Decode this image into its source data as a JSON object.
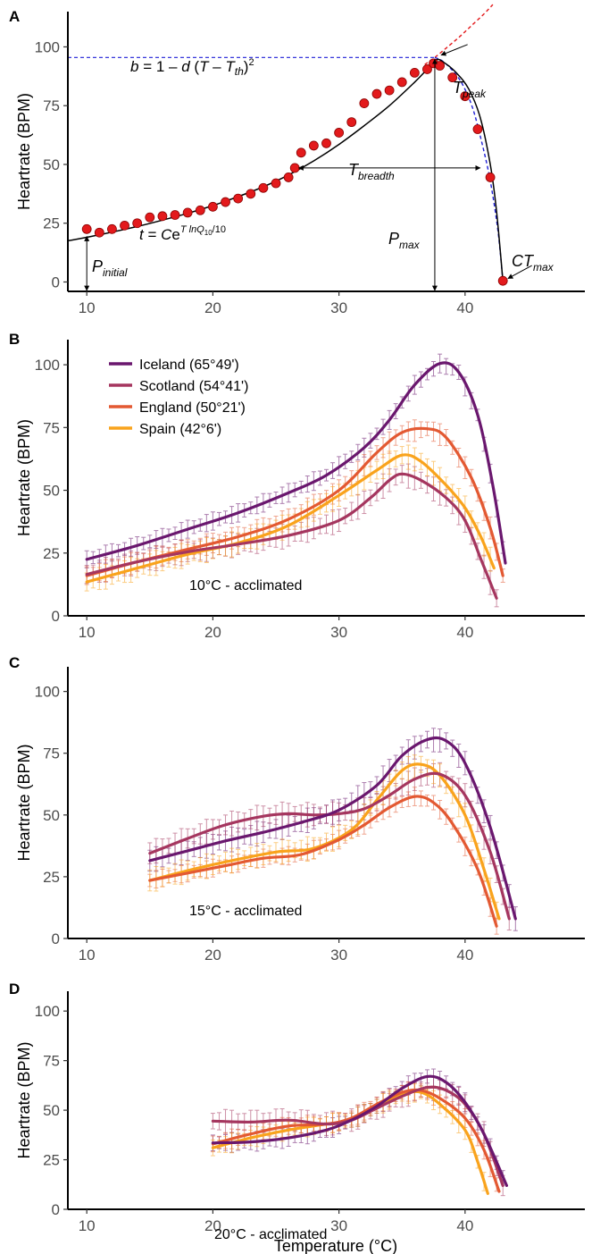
{
  "colors": {
    "Iceland": "#6a176e",
    "Scotland": "#a5365f",
    "England": "#e35932",
    "Spain": "#f9a31c",
    "model_fit": "#000000",
    "observed_points": "#e31a1c",
    "arrhenius_curve": "#e31a1c",
    "denaturation_curve": "#1f1fd6"
  },
  "x_axis_title": "Temperature (°C)",
  "chart_data": [
    {
      "type": "scatter",
      "panel": "A",
      "ylabel": "Heartrate (BPM)",
      "xlim": [
        8.5,
        49.5
      ],
      "ylim": [
        -4,
        115
      ],
      "x_ticks": [
        "10",
        "20",
        "30",
        "40"
      ],
      "y_ticks": [
        "0",
        "25",
        "50",
        "75",
        "100"
      ],
      "points": [
        [
          10,
          22.5
        ],
        [
          11,
          21
        ],
        [
          12,
          22.5
        ],
        [
          13,
          24
        ],
        [
          14,
          25
        ],
        [
          15,
          27.5
        ],
        [
          16,
          28
        ],
        [
          17,
          28.5
        ],
        [
          18,
          29.5
        ],
        [
          19,
          30.5
        ],
        [
          20,
          32
        ],
        [
          21,
          34
        ],
        [
          22,
          35.5
        ],
        [
          23,
          37.5
        ],
        [
          24,
          40
        ],
        [
          25,
          42
        ],
        [
          26,
          44.5
        ],
        [
          26.5,
          48.5
        ],
        [
          27,
          55
        ],
        [
          28,
          58
        ],
        [
          29,
          59
        ],
        [
          30,
          63.5
        ],
        [
          31,
          68
        ],
        [
          32,
          76
        ],
        [
          33,
          80
        ],
        [
          34,
          81.5
        ],
        [
          35,
          85
        ],
        [
          36,
          89
        ],
        [
          37,
          90.5
        ],
        [
          37.5,
          93
        ],
        [
          38,
          92
        ],
        [
          39,
          87
        ],
        [
          40,
          79
        ],
        [
          41,
          65
        ],
        [
          42,
          44.5
        ],
        [
          43,
          0.5
        ]
      ],
      "fit_curve": [
        [
          8.5,
          17.5
        ],
        [
          10,
          19
        ],
        [
          12,
          21.2
        ],
        [
          14,
          23.6
        ],
        [
          16,
          26.3
        ],
        [
          18,
          29.2
        ],
        [
          20,
          32.5
        ],
        [
          22,
          36.3
        ],
        [
          24,
          40.5
        ],
        [
          26,
          45.5
        ],
        [
          28,
          51.5
        ],
        [
          30,
          58.5
        ],
        [
          32,
          66.5
        ],
        [
          34,
          75
        ],
        [
          36,
          85
        ],
        [
          37,
          90.5
        ],
        [
          37.7,
          94.5
        ],
        [
          38.3,
          93.5
        ],
        [
          39.3,
          89
        ],
        [
          40.3,
          82
        ],
        [
          41.2,
          70
        ],
        [
          42,
          50
        ],
        [
          42.5,
          30
        ],
        [
          43,
          0.5
        ]
      ],
      "dashed_exponential": [
        [
          36.8,
          92.5
        ],
        [
          37.6,
          95.5
        ],
        [
          38.5,
          99.5
        ],
        [
          39.5,
          104
        ],
        [
          40.5,
          109
        ],
        [
          41.5,
          114
        ],
        [
          42.2,
          118
        ]
      ],
      "dashed_quadratic": [
        [
          37.6,
          95.5
        ],
        [
          38.2,
          94
        ],
        [
          39,
          90
        ],
        [
          39.8,
          84
        ],
        [
          40.6,
          74
        ],
        [
          41.3,
          60
        ],
        [
          42,
          43
        ],
        [
          42.6,
          22
        ],
        [
          43,
          0.5
        ]
      ],
      "annotations": {
        "quadratic_formula": "b = 1 – d (T – T_th)²",
        "exponential_formula": "t = Ce^(T lnQ10 / 10)",
        "t_peak": "T_peak",
        "t_breadth": "T_breadth",
        "p_max": "P_max",
        "p_initial": "P_initial",
        "ct_max": "CT_max",
        "t_peak_value": 37.6,
        "p_max_value": 95.5,
        "t_breadth_range": [
          26.8,
          41.2
        ],
        "t_breadth_level": 48.5,
        "p_initial_value": 19,
        "ct_max_value": 43
      }
    },
    {
      "type": "line",
      "panel": "B",
      "caption": "10°C - acclimated",
      "ylabel": "Heartrate (BPM)",
      "xlim": [
        8.5,
        49.5
      ],
      "ylim": [
        0,
        110
      ],
      "x_ticks": [
        "10",
        "20",
        "30",
        "40"
      ],
      "y_ticks": [
        "0",
        "25",
        "50",
        "75",
        "100"
      ],
      "legend": [
        "Iceland (65°49')",
        "Scotland (54°41')",
        "England (50°21')",
        "Spain (42°6')"
      ],
      "legend_position": "top-left",
      "series": [
        {
          "name": "Iceland",
          "err": 3,
          "points": [
            [
              10,
              22.5
            ],
            [
              14,
              28
            ],
            [
              18,
              34.5
            ],
            [
              22,
              41
            ],
            [
              26,
              49
            ],
            [
              29,
              56
            ],
            [
              32,
              67
            ],
            [
              34,
              78
            ],
            [
              36,
              92
            ],
            [
              38,
              100.5
            ],
            [
              39.5,
              97
            ],
            [
              41,
              80
            ],
            [
              42.2,
              52
            ],
            [
              43.2,
              21
            ]
          ]
        },
        {
          "name": "Scotland",
          "err": 4,
          "points": [
            [
              10,
              16.5
            ],
            [
              14,
              21.5
            ],
            [
              18,
              25.5
            ],
            [
              22,
              28.5
            ],
            [
              26,
              32
            ],
            [
              30,
              38
            ],
            [
              32.5,
              47
            ],
            [
              34,
              54
            ],
            [
              35,
              56.5
            ],
            [
              36.5,
              54
            ],
            [
              38.5,
              47
            ],
            [
              40,
              38
            ],
            [
              41.3,
              22
            ],
            [
              42.5,
              7
            ]
          ]
        },
        {
          "name": "England",
          "err": 3.5,
          "points": [
            [
              10,
              16
            ],
            [
              14,
              21.5
            ],
            [
              18,
              26.5
            ],
            [
              22,
              31.5
            ],
            [
              26,
              38.5
            ],
            [
              30,
              50
            ],
            [
              33,
              65
            ],
            [
              35,
              73
            ],
            [
              37,
              74.5
            ],
            [
              38.5,
              71
            ],
            [
              40.5,
              55
            ],
            [
              42,
              35
            ],
            [
              43,
              16
            ]
          ]
        },
        {
          "name": "Spain",
          "err": 4,
          "points": [
            [
              10,
              13.5
            ],
            [
              14,
              19
            ],
            [
              18,
              24.5
            ],
            [
              22,
              29
            ],
            [
              26,
              36
            ],
            [
              30,
              48
            ],
            [
              33,
              58
            ],
            [
              35,
              64
            ],
            [
              36.5,
              61.5
            ],
            [
              38.5,
              52
            ],
            [
              40,
              43
            ],
            [
              41.2,
              32
            ],
            [
              42.3,
              19
            ]
          ]
        }
      ]
    },
    {
      "type": "line",
      "panel": "C",
      "caption": "15°C - acclimated",
      "ylabel": "Heartrate (BPM)",
      "xlim": [
        8.5,
        49.5
      ],
      "ylim": [
        0,
        110
      ],
      "x_ticks": [
        "10",
        "20",
        "30",
        "40"
      ],
      "y_ticks": [
        "0",
        "25",
        "50",
        "75",
        "100"
      ],
      "series": [
        {
          "name": "Iceland",
          "err": 4,
          "points": [
            [
              15,
              31.5
            ],
            [
              18,
              35.5
            ],
            [
              21,
              39.5
            ],
            [
              24,
              43
            ],
            [
              27,
              47
            ],
            [
              30,
              52
            ],
            [
              33,
              62
            ],
            [
              35,
              74
            ],
            [
              37,
              80.5
            ],
            [
              38.5,
              80
            ],
            [
              40,
              71
            ],
            [
              42,
              45
            ],
            [
              44,
              8
            ]
          ]
        },
        {
          "name": "Scotland",
          "err": 4,
          "points": [
            [
              15,
              34.5
            ],
            [
              18,
              40.5
            ],
            [
              21,
              46
            ],
            [
              24,
              49.5
            ],
            [
              26,
              50.5
            ],
            [
              28,
              50
            ],
            [
              30,
              50.5
            ],
            [
              32,
              52.5
            ],
            [
              34,
              58
            ],
            [
              36,
              64.5
            ],
            [
              38,
              66.5
            ],
            [
              40,
              58
            ],
            [
              42,
              35
            ],
            [
              43.5,
              8
            ]
          ]
        },
        {
          "name": "England",
          "err": 3,
          "points": [
            [
              15,
              23.5
            ],
            [
              18,
              26.5
            ],
            [
              21,
              29.5
            ],
            [
              24,
              32.5
            ],
            [
              27,
              34
            ],
            [
              30,
              40
            ],
            [
              32,
              46
            ],
            [
              34,
              53
            ],
            [
              36,
              57.5
            ],
            [
              37.5,
              55
            ],
            [
              39,
              46.5
            ],
            [
              41,
              28
            ],
            [
              42.5,
              5
            ]
          ]
        },
        {
          "name": "Spain",
          "err": 4,
          "points": [
            [
              15,
              23.5
            ],
            [
              18,
              27.5
            ],
            [
              21,
              31
            ],
            [
              25,
              35
            ],
            [
              28,
              36.5
            ],
            [
              31,
              44
            ],
            [
              33,
              56
            ],
            [
              35,
              68
            ],
            [
              36.5,
              70.5
            ],
            [
              38,
              66
            ],
            [
              40,
              50
            ],
            [
              41.5,
              28
            ],
            [
              42.7,
              8
            ]
          ]
        }
      ]
    },
    {
      "type": "line",
      "panel": "D",
      "caption": "20°C - acclimated",
      "ylabel": "Heartrate (BPM)",
      "xlabel": "Temperature (°C)",
      "xlim": [
        8.5,
        49.5
      ],
      "ylim": [
        0,
        110
      ],
      "x_ticks": [
        "10",
        "20",
        "30",
        "40"
      ],
      "y_ticks": [
        "0",
        "25",
        "50",
        "75",
        "100"
      ],
      "series": [
        {
          "name": "Iceland",
          "err": 4,
          "points": [
            [
              20,
              33.5
            ],
            [
              23,
              34
            ],
            [
              26,
              36
            ],
            [
              29,
              40
            ],
            [
              31,
              45
            ],
            [
              33,
              52
            ],
            [
              35,
              61
            ],
            [
              37,
              67
            ],
            [
              38.5,
              64
            ],
            [
              40,
              54
            ],
            [
              41.5,
              38
            ],
            [
              43.3,
              12
            ]
          ]
        },
        {
          "name": "Scotland",
          "err": 5,
          "points": [
            [
              20,
              44.5
            ],
            [
              23,
              44
            ],
            [
              26,
              45
            ],
            [
              29,
              43
            ],
            [
              31,
              45
            ],
            [
              33,
              51
            ],
            [
              35,
              57
            ],
            [
              37,
              61.5
            ],
            [
              38.5,
              60
            ],
            [
              40,
              53
            ],
            [
              41.5,
              38
            ],
            [
              43,
              12
            ]
          ]
        },
        {
          "name": "England",
          "err": 4,
          "points": [
            [
              20,
              33
            ],
            [
              23,
              38
            ],
            [
              26,
              42
            ],
            [
              29,
              43
            ],
            [
              31,
              46
            ],
            [
              33,
              53
            ],
            [
              35,
              59
            ],
            [
              36.5,
              60
            ],
            [
              38,
              56
            ],
            [
              40,
              46
            ],
            [
              41.5,
              30
            ],
            [
              42.7,
              9
            ]
          ]
        },
        {
          "name": "Spain",
          "err": 4,
          "points": [
            [
              20,
              31
            ],
            [
              23,
              36
            ],
            [
              26,
              40
            ],
            [
              29,
              43
            ],
            [
              31,
              45
            ],
            [
              33,
              52
            ],
            [
              35,
              58
            ],
            [
              36.5,
              59
            ],
            [
              38,
              53
            ],
            [
              40,
              40
            ],
            [
              41,
              24
            ],
            [
              41.8,
              8
            ]
          ]
        }
      ]
    }
  ]
}
